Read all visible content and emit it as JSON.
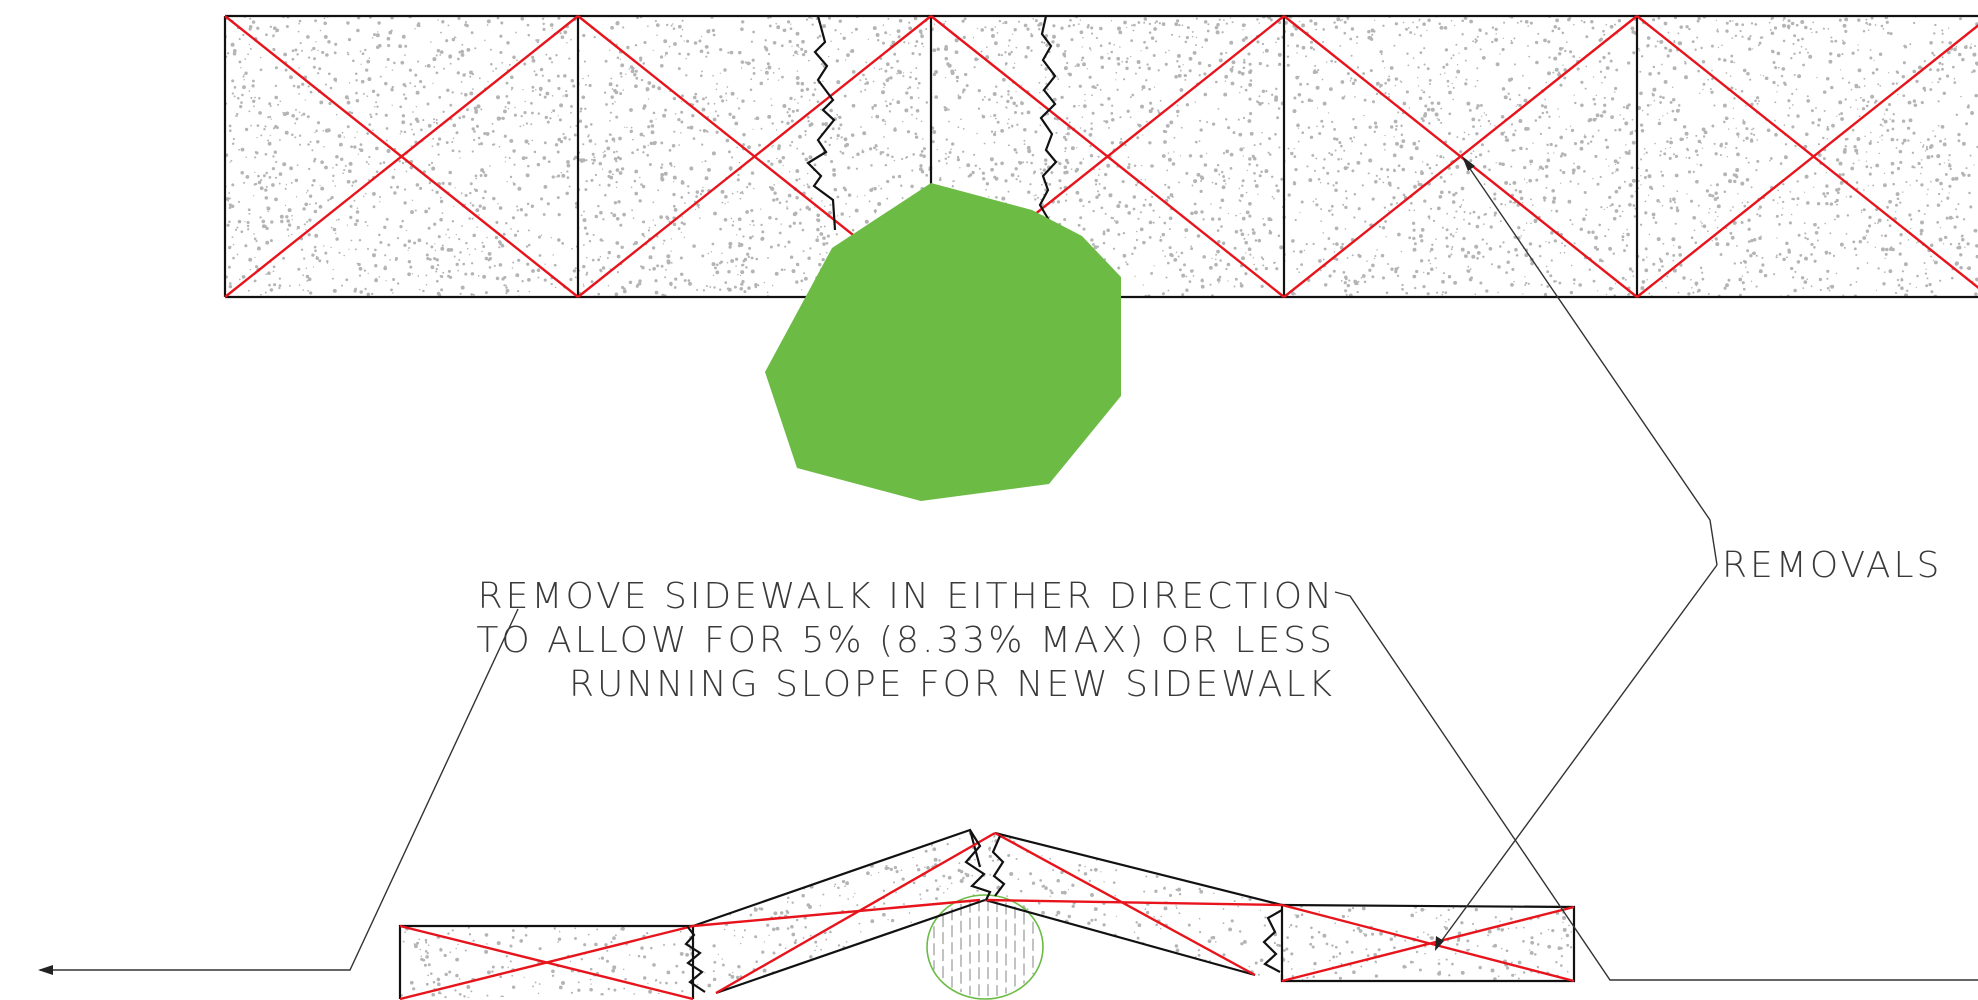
{
  "notes": {
    "removals_label": "REMOVALS",
    "remove_note_line1": "REMOVE SIDEWALK IN EITHER DIRECTION",
    "remove_note_line2": "TO ALLOW FOR 5% (8.33% MAX) OR LESS",
    "remove_note_line3": "RUNNING SLOPE FOR NEW SIDEWALK"
  },
  "colors": {
    "removal_x": "#e8141c",
    "tree_canopy": "#6cbb45",
    "concrete_speckle": "#b4b4b4",
    "linework": "#111111"
  },
  "icons": {
    "tree": "tree-canopy",
    "root_bulge": "tree-root-hatched-circle",
    "crack": "zigzag-crack-line"
  }
}
